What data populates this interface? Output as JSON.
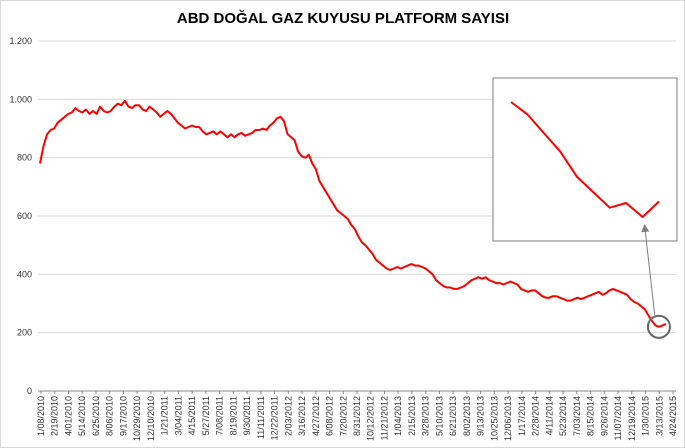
{
  "chart_data": {
    "type": "line",
    "title": "ABD DOĞAL GAZ KUYUSU PLATFORM SAYISI",
    "xlabel": "",
    "ylabel": "",
    "ylim": [
      0,
      1200
    ],
    "yticks": [
      0,
      200,
      400,
      600,
      800,
      1000,
      1200
    ],
    "ytick_labels": [
      "0",
      "200",
      "400",
      "600",
      "800",
      "1.000",
      "1.200"
    ],
    "grid": true,
    "legend": "none",
    "series_color": "#ff0000",
    "x_tick_labels": [
      "1/08/2010",
      "2/19/2010",
      "4/01/2010",
      "5/14/2010",
      "6/25/2010",
      "8/06/2010",
      "9/17/2010",
      "10/29/2010",
      "12/10/2010",
      "1/21/2011",
      "3/04/2011",
      "4/15/2011",
      "5/27/2011",
      "7/08/2011",
      "8/19/2011",
      "9/30/2011",
      "11/11/2011",
      "12/22/2011",
      "2/03/2012",
      "3/16/2012",
      "4/27/2012",
      "6/08/2012",
      "7/20/2012",
      "8/31/2012",
      "10/12/2012",
      "11/21/2012",
      "1/04/2013",
      "2/15/2013",
      "3/28/2013",
      "5/10/2013",
      "6/21/2013",
      "8/02/2013",
      "9/13/2013",
      "10/25/2013",
      "12/06/2013",
      "1/17/2014",
      "2/28/2014",
      "4/11/2014",
      "5/23/2014",
      "7/03/2014",
      "8/15/2014",
      "9/26/2014",
      "11/07/2014",
      "12/19/2014",
      "1/30/2015",
      "3/13/2015",
      "4/24/2015"
    ],
    "series": [
      {
        "values": [
          780,
          840,
          880,
          895,
          900,
          920,
          930,
          940,
          950,
          955,
          970,
          960,
          955,
          965,
          950,
          960,
          950,
          975,
          960,
          955,
          960,
          975,
          985,
          980,
          995,
          975,
          970,
          980,
          980,
          965,
          960,
          975,
          965,
          955,
          940,
          950,
          960,
          950,
          935,
          920,
          910,
          900,
          905,
          910,
          905,
          905,
          890,
          880,
          885,
          890,
          880,
          890,
          880,
          870,
          880,
          870,
          880,
          885,
          875,
          880,
          885,
          895,
          895,
          900,
          895,
          910,
          920,
          935,
          940,
          925,
          880,
          870,
          860,
          820,
          805,
          800,
          810,
          780,
          760,
          720,
          700,
          680,
          660,
          640,
          620,
          610,
          600,
          590,
          570,
          555,
          530,
          510,
          500,
          485,
          470,
          450,
          440,
          430,
          420,
          415,
          420,
          425,
          420,
          425,
          430,
          435,
          430,
          430,
          425,
          420,
          410,
          400,
          380,
          370,
          360,
          355,
          355,
          350,
          350,
          355,
          360,
          370,
          380,
          385,
          390,
          385,
          390,
          380,
          375,
          370,
          370,
          365,
          370,
          375,
          370,
          365,
          350,
          345,
          340,
          345,
          345,
          335,
          325,
          320,
          320,
          325,
          325,
          320,
          315,
          310,
          310,
          315,
          320,
          315,
          320,
          325,
          330,
          335,
          340,
          330,
          335,
          345,
          350,
          345,
          340,
          335,
          330,
          315,
          305,
          300,
          290,
          280,
          260,
          240,
          225,
          220,
          225,
          230
        ]
      }
    ],
    "inset": {
      "values": [
        1000,
        960,
        900,
        840,
        760,
        710,
        660,
        675,
        630,
        680
      ]
    }
  }
}
